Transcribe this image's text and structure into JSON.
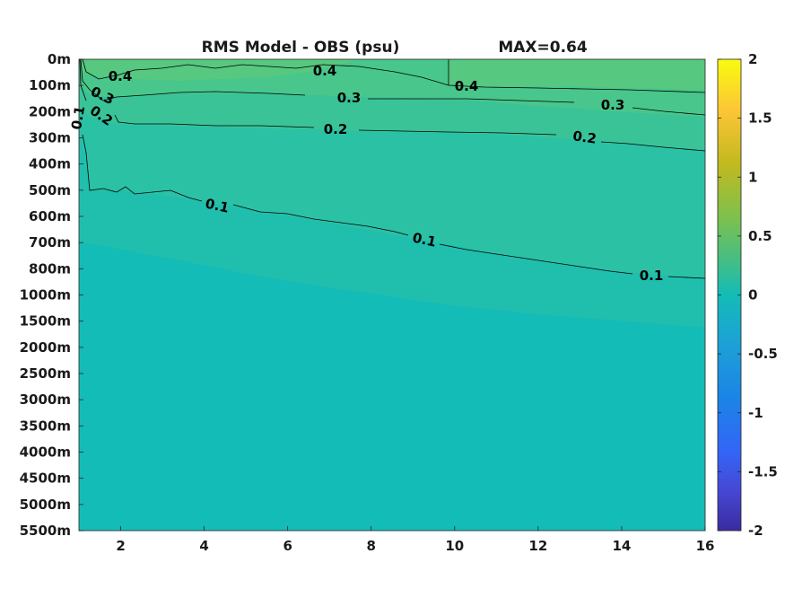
{
  "title": {
    "main": "RMS Model - OBS (psu)",
    "max_label": "MAX=0.64"
  },
  "chart_data": {
    "type": "heatmap",
    "title": "RMS Model - OBS (psu)",
    "annotation": "MAX=0.64",
    "xlabel": "",
    "ylabel": "",
    "xlim": [
      1,
      16
    ],
    "x_ticks": [
      "2",
      "4",
      "6",
      "8",
      "10",
      "12",
      "14",
      "16"
    ],
    "y_ticks": [
      "0m",
      "100m",
      "200m",
      "300m",
      "400m",
      "500m",
      "600m",
      "700m",
      "800m",
      "1000m",
      "1500m",
      "2000m",
      "2500m",
      "3000m",
      "3500m",
      "4000m",
      "4500m",
      "5000m",
      "5500m"
    ],
    "colorbar": {
      "range": [
        -2,
        2
      ],
      "ticks": [
        "2",
        "1.5",
        "1",
        "0.5",
        "0",
        "-0.5",
        "-1",
        "-1.5",
        "-2"
      ],
      "colormap": "parula"
    },
    "contour_levels": [
      0.1,
      0.2,
      0.3,
      0.4
    ],
    "contour_labels": [
      {
        "text": "0.4",
        "x": 1.9,
        "level": "100m"
      },
      {
        "text": "0.4",
        "x": 6.9,
        "level": "50m"
      },
      {
        "text": "0.4",
        "x": 10.3,
        "level": "100m"
      },
      {
        "text": "0.3",
        "x": 1.5,
        "level": "130m"
      },
      {
        "text": "0.3",
        "x": 7.5,
        "level": "150m"
      },
      {
        "text": "0.3",
        "x": 14.1,
        "level": "170m"
      },
      {
        "text": "0.2",
        "x": 1.5,
        "level": "200m"
      },
      {
        "text": "0.2",
        "x": 6.9,
        "level": "250m"
      },
      {
        "text": "0.2",
        "x": 13.9,
        "level": "300m"
      },
      {
        "text": "0.1",
        "x": 1.05,
        "level": "210m"
      },
      {
        "text": "0.1",
        "x": 4.3,
        "level": "550m"
      },
      {
        "text": "0.1",
        "x": 9.2,
        "level": "700m"
      },
      {
        "text": "0.1",
        "x": 14.6,
        "level": "820m"
      }
    ],
    "colors": {
      "c_0": "#13bcb6",
      "c_01": "#29c0a8",
      "c_02": "#33c29d",
      "c_03": "#44c58e",
      "c_04": "#53c781",
      "c_05": "#5ec87a",
      "parula_low": "#3a2eaa",
      "parula_mid": "#13bcb6",
      "parula_high": "#f8f40f"
    }
  }
}
